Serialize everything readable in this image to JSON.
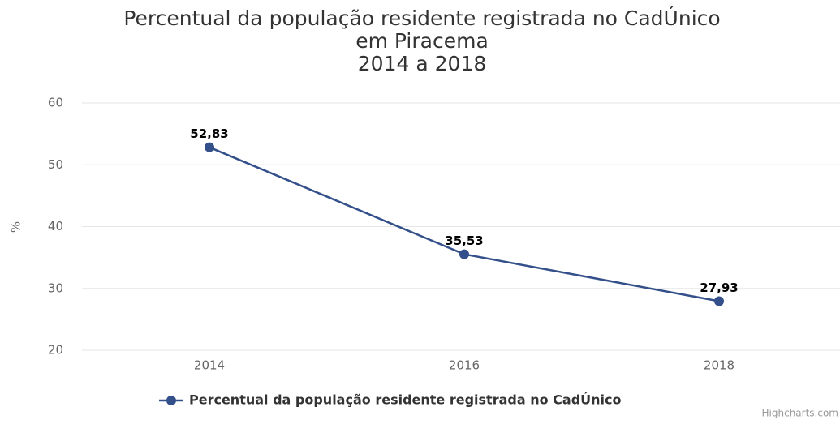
{
  "chart_data": {
    "type": "line",
    "title": [
      "Percentual da população residente registrada no CadÚnico",
      "em Piracema",
      "2014 a 2018"
    ],
    "y_label": "%",
    "categories": [
      "2014",
      "2016",
      "2018"
    ],
    "series": [
      {
        "name": "Percentual da população residente registrada no CadÚnico",
        "color": "#34508a",
        "values": [
          52.83,
          35.53,
          27.93
        ],
        "value_labels": [
          "52,83",
          "35,53",
          "27,93"
        ]
      }
    ],
    "ylim": [
      20,
      60
    ],
    "yticks": [
      20,
      30,
      40,
      50,
      60
    ],
    "grid": true,
    "legend": "bottom",
    "credits": "Highcharts.com"
  }
}
